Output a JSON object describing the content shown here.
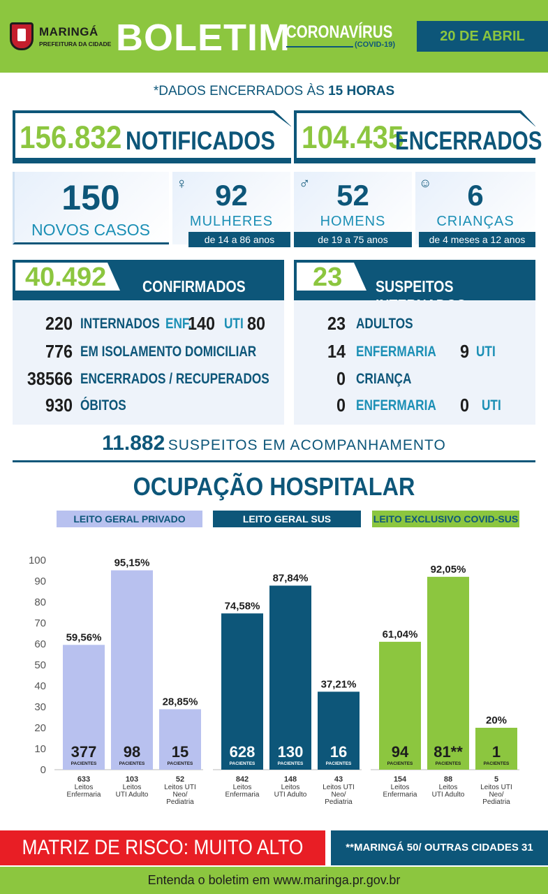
{
  "header": {
    "city": "MARINGÁ",
    "prefeitura": "PREFEITURA DA CIDADE",
    "title": "BOLETIM",
    "subtitle": "CORONAVÍRUS",
    "subtitle2": "(COVID-19)",
    "date": "20 DE ABRIL"
  },
  "cutoff": {
    "prefix": "*DADOS ENCERRADOS ÀS ",
    "hour": "15 HORAS"
  },
  "totals": {
    "notificados_value": "156.832",
    "notificados_label": "NOTIFICADOS",
    "encerrados_value": "104.435",
    "encerrados_label": "ENCERRADOS"
  },
  "new_cases": {
    "value": "150",
    "label": "NOVOS CASOS",
    "women": {
      "value": "92",
      "label": "MULHERES",
      "range": "de 14 a 86 anos",
      "icon": "woman-icon"
    },
    "men": {
      "value": "52",
      "label": "HOMENS",
      "range": "de 19 a 75 anos",
      "icon": "man-icon"
    },
    "children": {
      "value": "6",
      "label": "CRIANÇAS",
      "range": "de 4 meses a 12 anos",
      "icon": "baby-icon"
    }
  },
  "confirmed": {
    "value": "40.492",
    "label": "CONFIRMADOS",
    "rows": [
      {
        "value": "220",
        "label": "INTERNADOS",
        "enf_label": "ENF.",
        "enf_value": "140",
        "uti_label": "UTI",
        "uti_value": "80"
      },
      {
        "value": "776",
        "label": "EM ISOLAMENTO DOMICILIAR"
      },
      {
        "value": "38566",
        "label": "ENCERRADOS / RECUPERADOS"
      },
      {
        "value": "930",
        "label": "ÓBITOS"
      }
    ]
  },
  "suspects": {
    "value": "23",
    "label": "SUSPEITOS INTERNADOS",
    "adults_value": "23",
    "adults_label": "ADULTOS",
    "adult_enf_value": "14",
    "adult_enf_label": "ENFERMARIA",
    "adult_uti_value": "9",
    "adult_uti_label": "UTI",
    "child_value": "0",
    "child_label": "CRIANÇA",
    "child_enf_value": "0",
    "child_enf_label": "ENFERMARIA",
    "child_uti_value": "0",
    "child_uti_label": "UTI"
  },
  "monitoring": {
    "value": "11.882",
    "label": "SUSPEITOS EM ACOMPANHAMENTO"
  },
  "occupancy_title": "OCUPAÇÃO HOSPITALAR",
  "footer": {
    "risk": "MATRIZ DE RISCO: MUITO ALTO",
    "note": "**MARINGÁ 50/ OUTRAS CIDADES 31",
    "site": "Entenda o boletim em www.maringa.pr.gov.br"
  },
  "colors": {
    "green": "#8cc63f",
    "navy": "#0d5679",
    "teal": "#1b8fb5",
    "lavender": "#b8c1ef",
    "red": "#e81e25"
  },
  "chart_data": {
    "type": "bar",
    "ylim": [
      0,
      100
    ],
    "yticks": [
      0,
      10,
      20,
      30,
      40,
      50,
      60,
      70,
      80,
      90,
      100
    ],
    "groups": [
      {
        "name": "LEITO GERAL PRIVADO",
        "color": "#b8c1ef",
        "bars": [
          {
            "value": 59.56,
            "label": "59,56%",
            "patients": "377",
            "beds": "633",
            "cat": [
              "Leitos",
              "Enfermaria"
            ]
          },
          {
            "value": 95.15,
            "label": "95,15%",
            "patients": "98",
            "beds": "103",
            "cat": [
              "Leitos",
              "UTI Adulto"
            ]
          },
          {
            "value": 28.85,
            "label": "28,85%",
            "patients": "15",
            "beds": "52",
            "cat": [
              "Leitos UTI",
              "Neo/",
              "Pediatria"
            ]
          }
        ]
      },
      {
        "name": "LEITO GERAL SUS",
        "color": "#0d5679",
        "bars": [
          {
            "value": 74.58,
            "label": "74,58%",
            "patients": "628",
            "beds": "842",
            "cat": [
              "Leitos",
              "Enfermaria"
            ]
          },
          {
            "value": 87.84,
            "label": "87,84%",
            "patients": "130",
            "beds": "148",
            "cat": [
              "Leitos",
              "UTI Adulto"
            ]
          },
          {
            "value": 37.21,
            "label": "37,21%",
            "patients": "16",
            "beds": "43",
            "cat": [
              "Leitos UTI",
              "Neo/",
              "Pediatria"
            ]
          }
        ]
      },
      {
        "name": "LEITO EXCLUSIVO COVID-SUS",
        "color": "#8cc63f",
        "bars": [
          {
            "value": 61.04,
            "label": "61,04%",
            "patients": "94",
            "beds": "154",
            "cat": [
              "Leitos",
              "Enfermaria"
            ]
          },
          {
            "value": 92.05,
            "label": "92,05%",
            "patients": "81**",
            "beds": "88",
            "cat": [
              "Leitos",
              "UTI Adulto"
            ]
          },
          {
            "value": 20,
            "label": "20%",
            "patients": "1",
            "beds": "5",
            "cat": [
              "Leitos UTI",
              "Neo/",
              "Pediatria"
            ]
          }
        ]
      }
    ],
    "patients_word": "PACIENTES"
  }
}
